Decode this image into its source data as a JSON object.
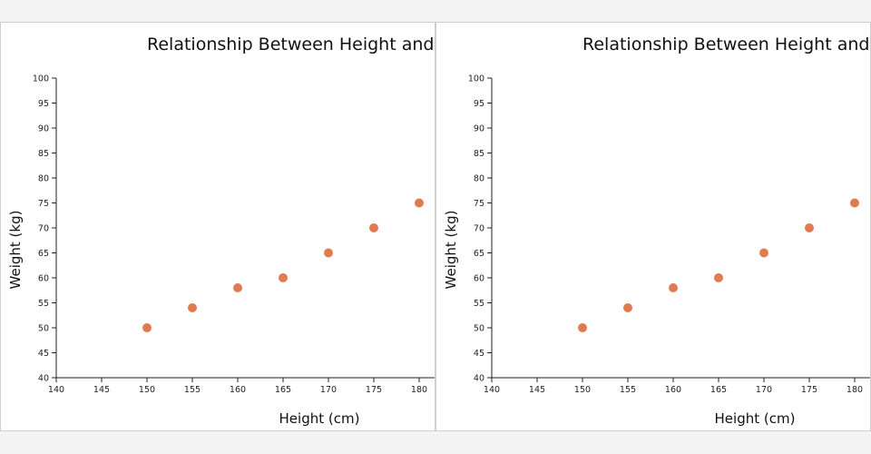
{
  "chart_data": [
    {
      "type": "scatter",
      "title": "Relationship Between Height and Weight",
      "xlabel": "Height (cm)",
      "ylabel": "Weight (kg)",
      "xlim": [
        140,
        180
      ],
      "ylim": [
        40,
        100
      ],
      "x_ticks": [
        140,
        145,
        150,
        155,
        160,
        165,
        170,
        175,
        180
      ],
      "y_ticks": [
        40,
        45,
        50,
        55,
        60,
        65,
        70,
        75,
        80,
        85,
        90,
        95,
        100
      ],
      "x": [
        150,
        155,
        160,
        165,
        170,
        175,
        180
      ],
      "y": [
        50,
        54,
        58,
        60,
        65,
        70,
        75
      ],
      "grid": false,
      "point_color": "#e07b4f"
    },
    {
      "type": "scatter",
      "title": "Relationship Between Height and Weight",
      "xlabel": "Height (cm)",
      "ylabel": "Weight (kg)",
      "xlim": [
        140,
        180
      ],
      "ylim": [
        40,
        100
      ],
      "x_ticks": [
        140,
        145,
        150,
        155,
        160,
        165,
        170,
        175,
        180
      ],
      "y_ticks": [
        40,
        45,
        50,
        55,
        60,
        65,
        70,
        75,
        80,
        85,
        90,
        95,
        100
      ],
      "x": [
        150,
        155,
        160,
        165,
        170,
        175,
        180
      ],
      "y": [
        50,
        54,
        58,
        60,
        65,
        70,
        75
      ],
      "grid": false,
      "point_color": "#e07b4f"
    }
  ]
}
